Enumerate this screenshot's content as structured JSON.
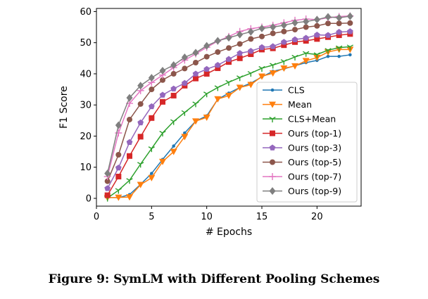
{
  "caption": "Figure 9: SymLM with Different Pooling Schemes",
  "chart_data": {
    "type": "line",
    "title": "",
    "xlabel": "# Epochs",
    "ylabel": "F1 Score",
    "xlim": [
      0,
      24
    ],
    "ylim": [
      -2.5,
      61
    ],
    "xticks": [
      0,
      5,
      10,
      15,
      20
    ],
    "yticks": [
      0,
      10,
      20,
      30,
      40,
      50,
      60
    ],
    "grid": false,
    "legend_position": "lower-right",
    "x": [
      1,
      2,
      3,
      4,
      5,
      6,
      7,
      8,
      9,
      10,
      11,
      12,
      13,
      14,
      15,
      16,
      17,
      18,
      19,
      20,
      21,
      22,
      23
    ],
    "series": [
      {
        "name": "CLS",
        "color": "#1f77b4",
        "marker": "point",
        "values": [
          0.3,
          0.2,
          1.2,
          4.5,
          8.0,
          12.5,
          16.8,
          21.0,
          24.8,
          26.5,
          31.8,
          33.8,
          35.6,
          37.0,
          39.0,
          40.8,
          41.6,
          42.6,
          43.6,
          44.3,
          45.6,
          45.6,
          46.1
        ]
      },
      {
        "name": "Mean",
        "color": "#ff7f0e",
        "marker": "triangle-down",
        "values": [
          0.2,
          0.3,
          0.4,
          4.4,
          6.6,
          11.8,
          15.0,
          19.8,
          24.8,
          26.0,
          31.9,
          33.0,
          35.6,
          36.5,
          39.2,
          40.2,
          41.8,
          42.5,
          44.2,
          45.2,
          47.0,
          47.8,
          47.8
        ]
      },
      {
        "name": "CLS+Mean",
        "color": "#2ca02c",
        "marker": "tri-down",
        "values": [
          0.1,
          2.6,
          5.8,
          11.0,
          16.0,
          21.0,
          24.7,
          27.6,
          30.4,
          33.6,
          35.6,
          37.3,
          38.8,
          40.2,
          41.8,
          42.8,
          44.0,
          45.4,
          46.6,
          46.2,
          47.6,
          48.4,
          48.7
        ]
      },
      {
        "name": "Ours (top-1)",
        "color": "#d62728",
        "marker": "square",
        "values": [
          1.0,
          7.0,
          13.6,
          19.8,
          25.8,
          31.0,
          33.0,
          36.2,
          38.5,
          40.0,
          41.8,
          43.8,
          45.0,
          46.3,
          47.8,
          48.2,
          49.2,
          50.2,
          50.6,
          51.2,
          51.8,
          52.4,
          52.8
        ]
      },
      {
        "name": "Ours (top-3)",
        "color": "#9467bd",
        "marker": "pentagon",
        "values": [
          3.2,
          9.8,
          18.0,
          24.3,
          29.5,
          33.2,
          35.2,
          37.0,
          40.0,
          41.5,
          42.8,
          44.7,
          46.6,
          47.3,
          48.5,
          48.8,
          50.2,
          51.0,
          51.5,
          52.5,
          52.4,
          53.4,
          53.6
        ]
      },
      {
        "name": "Ours (top-5)",
        "color": "#8c564b",
        "marker": "circle",
        "values": [
          5.5,
          14.0,
          25.3,
          30.3,
          35.0,
          38.0,
          40.0,
          41.7,
          43.6,
          45.5,
          47.0,
          48.3,
          49.6,
          51.2,
          52.0,
          53.0,
          53.6,
          54.2,
          55.0,
          55.4,
          56.2,
          56.2,
          56.3
        ]
      },
      {
        "name": "Ours (top-7)",
        "color": "#e377c2",
        "marker": "plus",
        "values": [
          7.0,
          21.0,
          30.5,
          34.6,
          37.2,
          39.6,
          42.0,
          44.4,
          46.4,
          48.5,
          50.5,
          52.0,
          53.6,
          54.5,
          55.0,
          55.6,
          56.4,
          57.2,
          57.6,
          57.4,
          58.0,
          58.4,
          58.6
        ]
      },
      {
        "name": "Ours (top-9)",
        "color": "#7f7f7f",
        "marker": "diamond",
        "values": [
          8.0,
          23.5,
          32.3,
          36.2,
          38.7,
          41.0,
          42.8,
          45.3,
          46.8,
          49.0,
          50.6,
          51.6,
          52.6,
          53.5,
          54.6,
          55.0,
          55.6,
          56.4,
          56.8,
          57.4,
          58.3,
          58.0,
          58.5
        ]
      }
    ]
  }
}
